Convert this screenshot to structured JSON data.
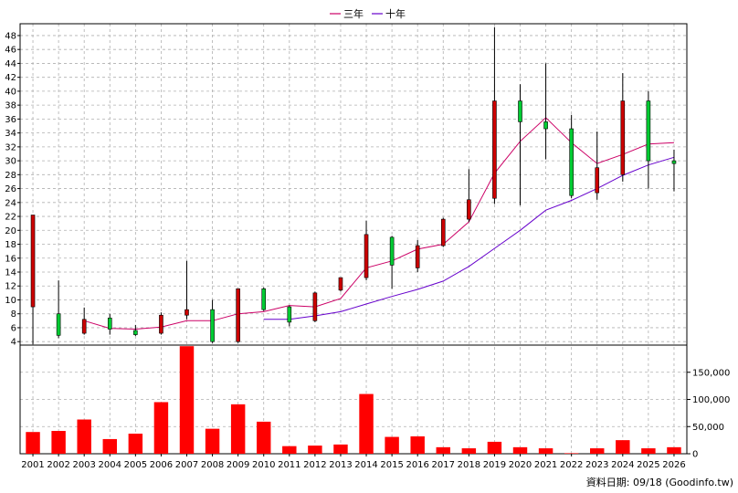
{
  "chart_data": {
    "type": "candlestick-with-volume",
    "legend": [
      {
        "label": "三年",
        "color": "#cc0066"
      },
      {
        "label": "十年",
        "color": "#6600cc"
      }
    ],
    "years": [
      "2001",
      "2002",
      "2003",
      "2004",
      "2005",
      "2006",
      "2007",
      "2008",
      "2009",
      "2010",
      "2011",
      "2012",
      "2013",
      "2014",
      "2015",
      "2016",
      "2017",
      "2018",
      "2019",
      "2020",
      "2021",
      "2022",
      "2023",
      "2024",
      "2025",
      "2026"
    ],
    "price_axis": {
      "min": 3.5,
      "max": 49.7,
      "ticks": [
        4,
        6,
        8,
        10,
        12,
        14,
        16,
        18,
        20,
        22,
        24,
        26,
        28,
        30,
        32,
        34,
        36,
        38,
        40,
        42,
        44,
        46,
        48
      ]
    },
    "volume_axis": {
      "min": 0,
      "max": 200000,
      "ticks": [
        0,
        50000,
        100000,
        150000
      ],
      "tick_labels": [
        "0",
        "50,000",
        "100,000",
        "150,000"
      ]
    },
    "candles": [
      {
        "year": "2001",
        "open": 9.0,
        "close": 22.2,
        "high": 22.2,
        "low": 3.6
      },
      {
        "year": "2002",
        "open": 8.0,
        "close": 4.9,
        "high": 12.8,
        "low": 4.5
      },
      {
        "year": "2003",
        "open": 5.2,
        "close": 7.2,
        "high": 8.9,
        "low": 5.0
      },
      {
        "year": "2004",
        "open": 7.4,
        "close": 5.8,
        "high": 8.0,
        "low": 5.0
      },
      {
        "year": "2005",
        "open": 5.6,
        "close": 5.0,
        "high": 6.4,
        "low": 4.8
      },
      {
        "year": "2006",
        "open": 5.2,
        "close": 7.8,
        "high": 8.2,
        "low": 5.0
      },
      {
        "year": "2007",
        "open": 7.8,
        "close": 8.6,
        "high": 15.6,
        "low": 7.2
      },
      {
        "year": "2008",
        "open": 8.6,
        "close": 4.0,
        "high": 10.0,
        "low": 3.8
      },
      {
        "year": "2009",
        "open": 4.0,
        "close": 11.6,
        "high": 11.6,
        "low": 3.8
      },
      {
        "year": "2010",
        "open": 11.6,
        "close": 8.6,
        "high": 11.8,
        "low": 8.4
      },
      {
        "year": "2011",
        "open": 9.0,
        "close": 6.8,
        "high": 9.2,
        "low": 6.2
      },
      {
        "year": "2012",
        "open": 7.0,
        "close": 11.0,
        "high": 11.2,
        "low": 6.8
      },
      {
        "year": "2013",
        "open": 11.4,
        "close": 13.2,
        "high": 13.2,
        "low": 11.2
      },
      {
        "year": "2014",
        "open": 13.2,
        "close": 19.4,
        "high": 21.4,
        "low": 12.8
      },
      {
        "year": "2015",
        "open": 19.0,
        "close": 15.0,
        "high": 19.2,
        "low": 11.6
      },
      {
        "year": "2016",
        "open": 14.6,
        "close": 17.8,
        "high": 18.6,
        "low": 14.0
      },
      {
        "year": "2017",
        "open": 17.8,
        "close": 21.6,
        "high": 21.8,
        "low": 17.6
      },
      {
        "year": "2018",
        "open": 21.6,
        "close": 24.4,
        "high": 28.8,
        "low": 21.2
      },
      {
        "year": "2019",
        "open": 24.6,
        "close": 38.6,
        "high": 49.2,
        "low": 23.8
      },
      {
        "year": "2020",
        "open": 38.6,
        "close": 35.6,
        "high": 41.0,
        "low": 23.6
      },
      {
        "year": "2021",
        "open": 35.6,
        "close": 34.6,
        "high": 44.0,
        "low": 30.2
      },
      {
        "year": "2022",
        "open": 34.6,
        "close": 25.0,
        "high": 36.6,
        "low": 24.6
      },
      {
        "year": "2023",
        "open": 25.4,
        "close": 29.0,
        "high": 34.2,
        "low": 24.4
      },
      {
        "year": "2024",
        "open": 28.0,
        "close": 38.6,
        "high": 42.6,
        "low": 27.0
      },
      {
        "year": "2025",
        "open": 38.6,
        "close": 30.0,
        "high": 40.0,
        "low": 26.0
      },
      {
        "year": "2026",
        "open": 30.0,
        "close": 29.6,
        "high": 31.6,
        "low": 25.6
      }
    ],
    "ma_three_year": [
      null,
      null,
      7.0,
      5.9,
      5.8,
      6.1,
      7.0,
      7.0,
      8.0,
      8.3,
      9.2,
      9.0,
      10.2,
      14.6,
      15.6,
      17.3,
      18.0,
      21.2,
      28.2,
      32.8,
      36.2,
      32.6,
      29.6,
      30.9,
      32.4,
      32.6
    ],
    "ma_ten_year": [
      null,
      null,
      null,
      null,
      null,
      null,
      null,
      null,
      null,
      7.2,
      7.2,
      7.7,
      8.3,
      9.4,
      10.5,
      11.5,
      12.7,
      14.8,
      17.4,
      20.0,
      22.9,
      24.3,
      26.0,
      27.9,
      29.4,
      30.5
    ],
    "volume": [
      40000,
      42000,
      63000,
      27000,
      37000,
      95000,
      198000,
      46000,
      91000,
      59000,
      14000,
      15000,
      17000,
      110000,
      31000,
      32000,
      12000,
      10000,
      22000,
      12000,
      10000,
      1000,
      10000,
      25000,
      10000,
      12000
    ],
    "footer": "資料日期: 09/18  (Goodinfo.tw)"
  }
}
